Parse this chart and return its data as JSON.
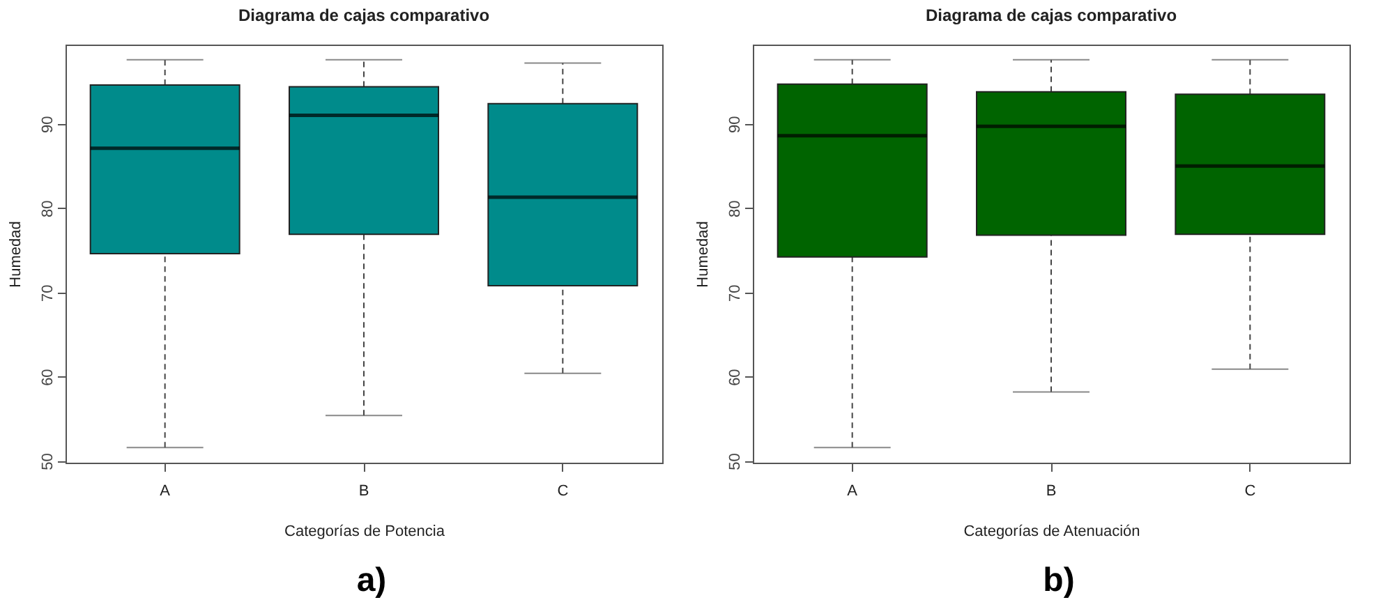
{
  "chart_data": [
    {
      "type": "box",
      "title": "Diagrama de cajas comparativo",
      "xlabel": "Categorías de Potencia",
      "ylabel": "Humedad",
      "categories": [
        "A",
        "B",
        "C"
      ],
      "ylim": [
        49.8,
        99.4
      ],
      "yticks": [
        50,
        60,
        70,
        80,
        90
      ],
      "grid": false,
      "annotations": [
        "a)"
      ],
      "series": [
        {
          "color": "#008b8b",
          "boxes": [
            {
              "low": 51.6,
              "q1": 74.6,
              "median": 87.1,
              "q3": 94.6,
              "high": 97.6
            },
            {
              "low": 55.4,
              "q1": 76.9,
              "median": 91.0,
              "q3": 94.4,
              "high": 97.6
            },
            {
              "low": 60.4,
              "q1": 70.8,
              "median": 81.3,
              "q3": 92.4,
              "high": 97.2
            }
          ]
        }
      ]
    },
    {
      "type": "box",
      "title": "Diagrama de cajas comparativo",
      "xlabel": "Categorías de Atenuación",
      "ylabel": "Humedad",
      "categories": [
        "A",
        "B",
        "C"
      ],
      "ylim": [
        49.8,
        99.4
      ],
      "yticks": [
        50,
        60,
        70,
        80,
        90
      ],
      "grid": false,
      "annotations": [
        "b)"
      ],
      "series": [
        {
          "color": "#006400",
          "boxes": [
            {
              "low": 51.6,
              "q1": 74.2,
              "median": 88.6,
              "q3": 94.7,
              "high": 97.6
            },
            {
              "low": 58.2,
              "q1": 76.8,
              "median": 89.7,
              "q3": 93.8,
              "high": 97.6
            },
            {
              "low": 60.9,
              "q1": 76.9,
              "median": 85.0,
              "q3": 93.5,
              "high": 97.6
            }
          ]
        }
      ]
    }
  ]
}
